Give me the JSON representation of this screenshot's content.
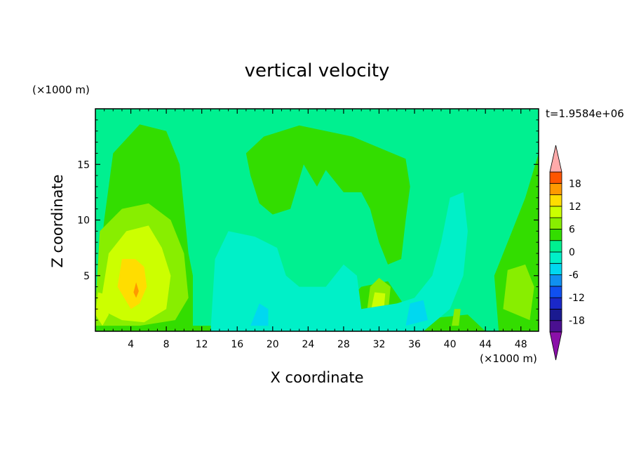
{
  "chart_data": {
    "type": "heatmap",
    "title": "vertical velocity",
    "xlabel": "X coordinate",
    "ylabel": "Z coordinate",
    "x_unit": "(×1000 m)",
    "y_unit": "(×1000 m)",
    "time_label": "t=1.9584e+06",
    "xlim": [
      0,
      50
    ],
    "ylim": [
      0,
      20
    ],
    "x_ticks": [
      4,
      8,
      12,
      16,
      20,
      24,
      28,
      32,
      36,
      40,
      44,
      48
    ],
    "y_ticks": [
      5,
      10,
      15
    ],
    "colorbar": {
      "ticks": [
        18,
        12,
        6,
        0,
        -6,
        -12,
        -18
      ],
      "levels": [
        -21,
        -18,
        -15,
        -12,
        -9,
        -6,
        -3,
        0,
        3,
        6,
        9,
        12,
        15,
        18,
        21
      ],
      "colors": [
        "#8a10a8",
        "#4a1090",
        "#1a1a90",
        "#1a28c8",
        "#1050f0",
        "#1090f0",
        "#00d8f0",
        "#00f0c8",
        "#00f090",
        "#33dd00",
        "#88ee00",
        "#ccff00",
        "#ffdd00",
        "#ff9900",
        "#ff5500",
        "#ee1100",
        "#ffaaaa"
      ]
    },
    "background_color": "#00f090",
    "regions": [
      {
        "level": 3,
        "points": [
          [
            0,
            3
          ],
          [
            1,
            10
          ],
          [
            2,
            16
          ],
          [
            5,
            18.6
          ],
          [
            8,
            18
          ],
          [
            9.5,
            15
          ],
          [
            10,
            11
          ],
          [
            10.5,
            7
          ],
          [
            11,
            5
          ],
          [
            11,
            0
          ],
          [
            0,
            0
          ]
        ]
      },
      {
        "level": 3,
        "points": [
          [
            17,
            16
          ],
          [
            19,
            17.5
          ],
          [
            23,
            18.5
          ],
          [
            29,
            17.5
          ],
          [
            35,
            15.5
          ],
          [
            35.5,
            13
          ],
          [
            35,
            10
          ],
          [
            34.5,
            6.5
          ],
          [
            33,
            6
          ],
          [
            32,
            8
          ],
          [
            31,
            11
          ],
          [
            30,
            12.5
          ],
          [
            28,
            12.5
          ],
          [
            26,
            14.5
          ],
          [
            25,
            13
          ],
          [
            23.5,
            15
          ],
          [
            22,
            11
          ],
          [
            20,
            10.5
          ],
          [
            18.5,
            11.5
          ],
          [
            17.5,
            14
          ]
        ]
      },
      {
        "level": 3,
        "points": [
          [
            45.5,
            0
          ],
          [
            45,
            5
          ],
          [
            47,
            9
          ],
          [
            48.5,
            12
          ],
          [
            50,
            16
          ],
          [
            50,
            0
          ]
        ]
      },
      {
        "level": 3,
        "points": [
          [
            10,
            0.5
          ],
          [
            21,
            0.5
          ],
          [
            24,
            2.5
          ],
          [
            27,
            1.5
          ],
          [
            30,
            4
          ],
          [
            33,
            4.5
          ],
          [
            36,
            1
          ],
          [
            42,
            1.5
          ],
          [
            44,
            0
          ],
          [
            10,
            0
          ]
        ]
      },
      {
        "level": 6,
        "points": [
          [
            0,
            2
          ],
          [
            0.5,
            9
          ],
          [
            3,
            11
          ],
          [
            6,
            11.5
          ],
          [
            8.5,
            10
          ],
          [
            10,
            7
          ],
          [
            10.5,
            3
          ],
          [
            9,
            1
          ],
          [
            5,
            0.5
          ],
          [
            0,
            0.5
          ]
        ]
      },
      {
        "level": 6,
        "points": [
          [
            30.5,
            1
          ],
          [
            31,
            4
          ],
          [
            32,
            4.8
          ],
          [
            33.3,
            4
          ],
          [
            33,
            1.5
          ],
          [
            32,
            0.6
          ]
        ]
      },
      {
        "level": 6,
        "points": [
          [
            46,
            2
          ],
          [
            46.5,
            5.5
          ],
          [
            48.5,
            6
          ],
          [
            49.5,
            4
          ],
          [
            49,
            1
          ]
        ]
      },
      {
        "level": 6,
        "points": [
          [
            40.2,
            0.5
          ],
          [
            40.5,
            2
          ],
          [
            41.2,
            2
          ],
          [
            41,
            0.5
          ]
        ]
      },
      {
        "level": 9,
        "points": [
          [
            0.5,
            2
          ],
          [
            1.5,
            7
          ],
          [
            3.5,
            9
          ],
          [
            6,
            9.5
          ],
          [
            7.5,
            7.5
          ],
          [
            8.5,
            5
          ],
          [
            8,
            2
          ],
          [
            5.5,
            0.8
          ],
          [
            3,
            1
          ]
        ]
      },
      {
        "level": 9,
        "points": [
          [
            0,
            1.5
          ],
          [
            0.3,
            3.5
          ],
          [
            1.2,
            3.3
          ],
          [
            1.5,
            1.5
          ],
          [
            0.8,
            0.5
          ]
        ]
      },
      {
        "level": 9,
        "points": [
          [
            31,
            1.5
          ],
          [
            31.5,
            3.5
          ],
          [
            32.7,
            3.4
          ],
          [
            32.5,
            1.5
          ]
        ]
      },
      {
        "level": 12,
        "points": [
          [
            2.5,
            4
          ],
          [
            3,
            6.5
          ],
          [
            4.5,
            6.5
          ],
          [
            5.5,
            5.8
          ],
          [
            5.8,
            4
          ],
          [
            5,
            2.5
          ],
          [
            4,
            2
          ]
        ]
      },
      {
        "level": 15,
        "points": [
          [
            4.3,
            3.5
          ],
          [
            4.6,
            4.4
          ],
          [
            4.9,
            3.6
          ],
          [
            4.6,
            3
          ]
        ]
      },
      {
        "level": -3,
        "points": [
          [
            13,
            0
          ],
          [
            13.5,
            6.5
          ],
          [
            15,
            9
          ],
          [
            18,
            8.5
          ],
          [
            20.5,
            7.5
          ],
          [
            21.5,
            5
          ],
          [
            23,
            4
          ],
          [
            26,
            4
          ],
          [
            28,
            6
          ],
          [
            29.5,
            5
          ],
          [
            30,
            2
          ],
          [
            34,
            2.5
          ],
          [
            36,
            3
          ],
          [
            38,
            5
          ],
          [
            39,
            8
          ],
          [
            40,
            12
          ],
          [
            41.5,
            12.5
          ],
          [
            42,
            9
          ],
          [
            41.5,
            5
          ],
          [
            40,
            2
          ],
          [
            37,
            0
          ],
          [
            30,
            0
          ]
        ]
      },
      {
        "level": -6,
        "points": [
          [
            35,
            0.5
          ],
          [
            35.5,
            2.5
          ],
          [
            37,
            2.8
          ],
          [
            37.5,
            1
          ]
        ]
      },
      {
        "level": -6,
        "points": [
          [
            17.5,
            0.5
          ],
          [
            18.5,
            2.5
          ],
          [
            19.5,
            2
          ],
          [
            19.5,
            0.5
          ]
        ]
      }
    ]
  }
}
